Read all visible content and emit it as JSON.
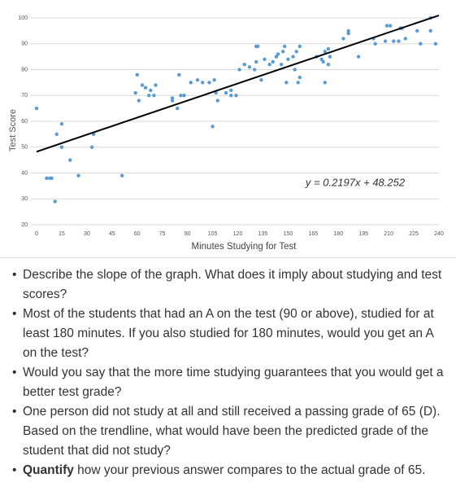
{
  "chart_data": {
    "type": "scatter",
    "xlabel": "Minutes Studying for Test",
    "ylabel": "Test Score",
    "xlim": [
      0,
      240
    ],
    "ylim": [
      20,
      100
    ],
    "xticks": [
      0,
      15,
      30,
      45,
      60,
      75,
      90,
      105,
      120,
      135,
      150,
      165,
      180,
      195,
      210,
      225,
      240
    ],
    "yticks": [
      20,
      30,
      40,
      50,
      60,
      70,
      80,
      90,
      100
    ],
    "grid": true,
    "color": "#5b9bd5",
    "x": [
      0,
      6,
      8,
      9,
      11,
      12,
      15,
      15,
      20,
      25,
      33,
      34,
      51,
      60,
      59,
      61,
      63,
      65,
      67,
      68,
      71,
      70,
      81,
      81,
      84,
      85,
      86,
      88,
      92,
      96,
      99,
      103,
      106,
      105,
      107,
      108,
      113,
      116,
      116,
      119,
      121,
      124,
      127,
      130,
      131,
      132,
      131,
      134,
      136,
      139,
      141,
      143,
      144,
      146,
      147,
      148,
      149,
      150,
      153,
      154,
      155,
      156,
      157,
      157,
      167,
      170,
      171,
      172,
      174,
      172,
      174,
      175,
      183,
      186,
      186,
      192,
      201,
      202,
      208,
      209,
      211,
      213,
      217,
      218,
      216,
      220,
      227,
      229,
      235,
      235,
      238
    ],
    "values": [
      65,
      38,
      38,
      38,
      29,
      55,
      59,
      50,
      45,
      39,
      50,
      55,
      39,
      78,
      71,
      68,
      74,
      73,
      70,
      72,
      74,
      70,
      69,
      68,
      65,
      78,
      70,
      70,
      75,
      76,
      75,
      75,
      76,
      58,
      71,
      68,
      71,
      72,
      70,
      70,
      80,
      82,
      81,
      80,
      89,
      89,
      83,
      76,
      84,
      82,
      83,
      85,
      86,
      82,
      87,
      89,
      75,
      84,
      85,
      80,
      87,
      75,
      89,
      77,
      85,
      84,
      83,
      87,
      88,
      75,
      82,
      85,
      92,
      95,
      94,
      85,
      92,
      90,
      91,
      97,
      97,
      91,
      96,
      96,
      91,
      92,
      95,
      90,
      100,
      95,
      90
    ],
    "trendline": {
      "slope": 0.2197,
      "intercept": 48.252,
      "label": "y = 0.2197x + 48.252",
      "color": "#000000"
    }
  },
  "bullets": [
    {
      "text": "Describe the slope of the graph. What does it imply about studying and test scores?"
    },
    {
      "text": "Most of the students that had an A on the test (90 or above), studied for at least 180 minutes. If you also studied for 180 minutes, would you get an A on the test?"
    },
    {
      "text": "Would you say that the more time studying guarantees that you would get a better test grade?"
    },
    {
      "text": "One person did not study at all and still received a passing grade of 65 (D). Based on the trendline, what would have been the predicted grade of the student that did not study?"
    },
    {
      "bold": "Quantify",
      "text": " how your previous answer compares to the actual grade of 65."
    }
  ]
}
